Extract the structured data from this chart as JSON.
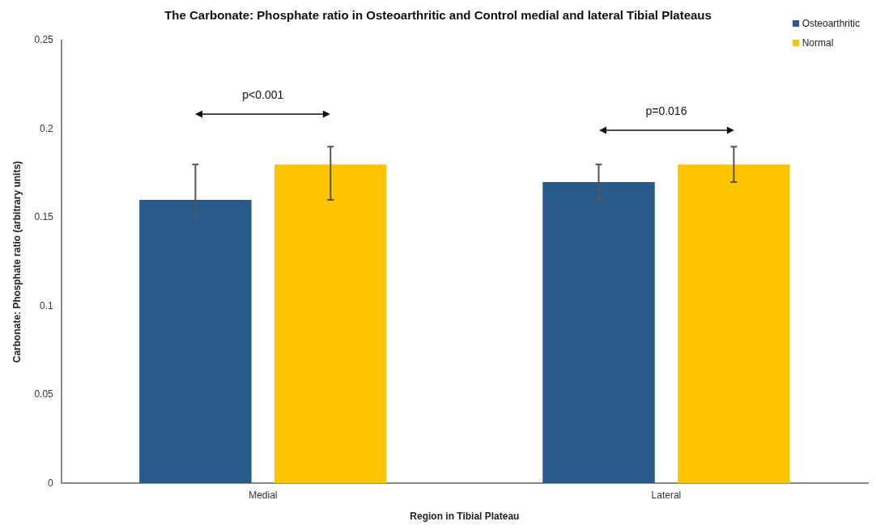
{
  "chart_data": {
    "type": "bar",
    "title": "The Carbonate: Phosphate ratio in Osteoarthritic and Control medial and lateral Tibial Plateaus",
    "xlabel": "Region in Tibial Plateau",
    "ylabel": "Carbonate: Phosphate ratio (arbitrary units)",
    "categories": [
      "Medial",
      "Lateral"
    ],
    "series": [
      {
        "name": "Osteoarthritic",
        "color": "#285a8a",
        "values": [
          0.16,
          0.17
        ],
        "errors": [
          [
            0.15,
            0.18
          ],
          [
            0.16,
            0.18
          ]
        ]
      },
      {
        "name": "Normal",
        "color": "#fcc500",
        "values": [
          0.18,
          0.18
        ],
        "errors": [
          [
            0.16,
            0.19
          ],
          [
            0.17,
            0.19
          ]
        ]
      }
    ],
    "ylim": [
      0,
      0.25
    ],
    "yticks": [
      0,
      0.05,
      0.1,
      0.15,
      0.2,
      0.25
    ],
    "grid": false,
    "legend": "top right",
    "annotations": [
      "p<0.001",
      "p=0.016"
    ]
  }
}
